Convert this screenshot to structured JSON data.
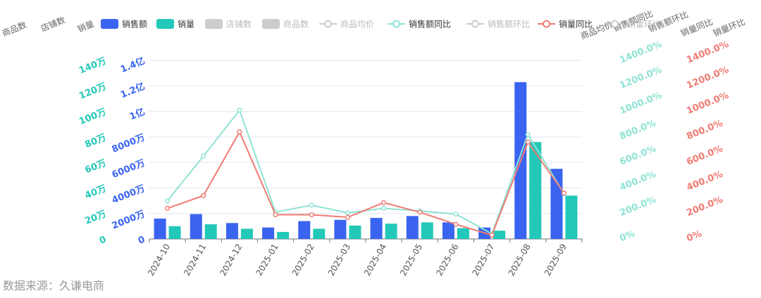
{
  "chart_data": {
    "type": "bar",
    "categories": [
      "2024-10",
      "2024-11",
      "2024-12",
      "2025-01",
      "2025-02",
      "2025-03",
      "2025-04",
      "2025-05",
      "2025-06",
      "2025-07",
      "2025-08",
      "2025-09"
    ],
    "legend": [
      {
        "name": "销售额",
        "symbol": "rect",
        "color": "#3a64f0",
        "active": true
      },
      {
        "name": "销量",
        "symbol": "rect",
        "color": "#23c8b8",
        "active": true
      },
      {
        "name": "店铺数",
        "symbol": "rect",
        "color": "#cccccc",
        "active": false
      },
      {
        "name": "商品数",
        "symbol": "rect",
        "color": "#cccccc",
        "active": false
      },
      {
        "name": "商品均价",
        "symbol": "line",
        "color": "#cccccc",
        "active": false
      },
      {
        "name": "销售额同比",
        "symbol": "line",
        "color": "#8ee3d3",
        "active": true
      },
      {
        "name": "销售额环比",
        "symbol": "line",
        "color": "#cccccc",
        "active": false
      },
      {
        "name": "销量同比",
        "symbol": "line",
        "color": "#f07b72",
        "active": true
      },
      {
        "name": "销量环比",
        "symbol": "line",
        "color": "#cccccc",
        "active": false
      }
    ],
    "series": [
      {
        "name": "销售额",
        "type": "bar",
        "axis": "sales",
        "color": "#3a64f0",
        "values": [
          16000000,
          19500000,
          12500000,
          9000000,
          14000000,
          15000000,
          16500000,
          18000000,
          13000000,
          9000000,
          123000000,
          55000000
        ]
      },
      {
        "name": "销量",
        "type": "bar",
        "axis": "volume",
        "color": "#23c8b8",
        "values": [
          100000,
          115000,
          80000,
          55000,
          80000,
          105000,
          120000,
          130000,
          85000,
          65000,
          760000,
          340000
        ]
      },
      {
        "name": "销售额同比",
        "type": "line",
        "axis": "salesYoy",
        "color": "#8ee3d3",
        "values": [
          300,
          650,
          1010,
          210,
          265,
          205,
          240,
          220,
          195,
          40,
          820,
          355
        ]
      },
      {
        "name": "销量同比",
        "type": "line",
        "axis": "volumeYoy",
        "color": "#f07b72",
        "values": [
          240,
          340,
          840,
          190,
          190,
          170,
          285,
          210,
          115,
          30,
          760,
          360
        ]
      }
    ],
    "axes": {
      "sales": {
        "name": "销售额",
        "min": 0,
        "max": 140000000,
        "ticks": [
          "0",
          "2000万",
          "4000万",
          "6000万",
          "8000万",
          "1亿",
          "1.2亿",
          "1.4亿"
        ],
        "color": "#3a64f0"
      },
      "volume": {
        "name": "销量",
        "min": 0,
        "max": 1400000,
        "ticks": [
          "0",
          "20万",
          "40万",
          "60万",
          "80万",
          "100万",
          "120万",
          "140万"
        ],
        "color": "#23c8b8"
      },
      "salesYoy": {
        "name": "销售额同比",
        "min": 0,
        "max": 1400,
        "ticks": [
          "0%",
          "200.0%",
          "400.0%",
          "600.0%",
          "800.0%",
          "1000.0%",
          "1200.0%",
          "1400.0%"
        ],
        "color": "#8ee3d3"
      },
      "volumeYoy": {
        "name": "销量环比",
        "min": 0,
        "max": 1400,
        "ticks": [
          "0%",
          "200.0%",
          "400.0%",
          "600.0%",
          "800.0%",
          "1000.0%",
          "1200.0%",
          "1400.0%"
        ],
        "color": "#f07b72"
      }
    },
    "extra_axis_names_left": [
      "商品数",
      "店铺数",
      "销量"
    ],
    "extra_axis_names_right": [
      "商品均价",
      "销售额同比",
      "销售额环比",
      "销量同比",
      "销量环比"
    ],
    "grid": true
  },
  "watermark": "数据来源：久谦电商"
}
